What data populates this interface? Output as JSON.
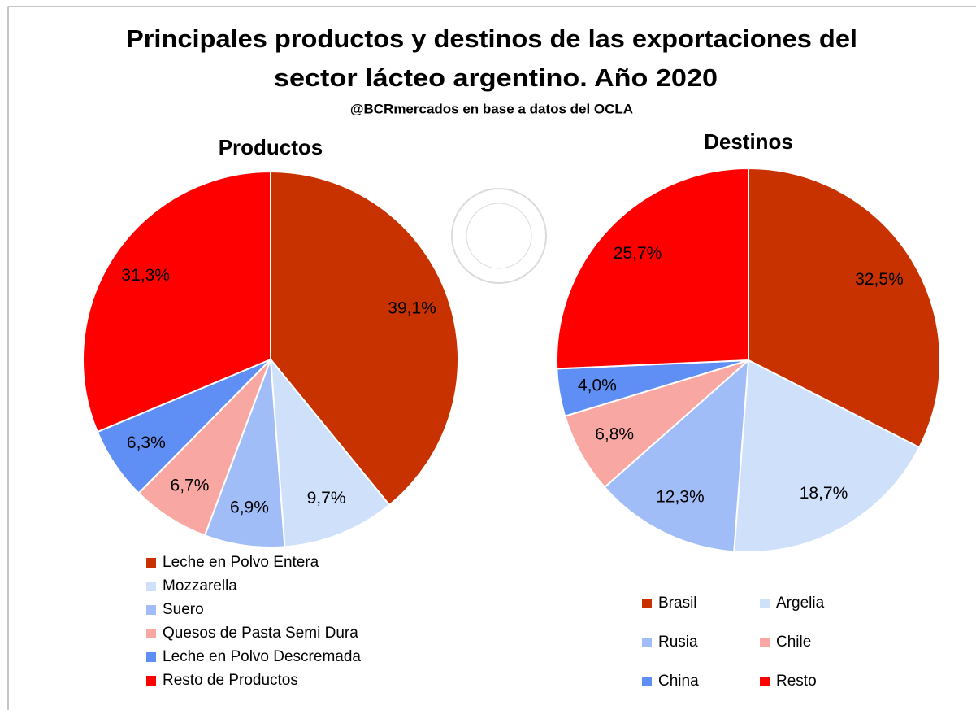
{
  "header": {
    "title_lines": [
      "Principales productos y destinos de las exportaciones del",
      "sector lácteo argentino. Año 2020"
    ],
    "subtitle": "@BCRmercados  en base a datos del OCLA"
  },
  "chart_data": [
    {
      "type": "pie",
      "title": "Productos",
      "categories": [
        "Leche en Polvo Entera",
        "Mozzarella",
        "Suero",
        "Quesos de Pasta Semi Dura",
        "Leche en Polvo Descremada",
        "Resto de Productos"
      ],
      "values": [
        39.1,
        9.7,
        6.9,
        6.7,
        6.3,
        31.3
      ],
      "value_labels": [
        "39,1%",
        "9,7%",
        "6,9%",
        "6,7%",
        "6,3%",
        "31,3%"
      ],
      "colors": [
        "#c83200",
        "#cfe0fb",
        "#a0bdf8",
        "#f9a7a2",
        "#5f8ff5",
        "#ff0000"
      ],
      "legend": "bottom"
    },
    {
      "type": "pie",
      "title": "Destinos",
      "categories": [
        "Brasil",
        "Argelia",
        "Rusia",
        "Chile",
        "China",
        "Resto"
      ],
      "values": [
        32.5,
        18.7,
        12.3,
        6.8,
        4.0,
        25.7
      ],
      "value_labels": [
        "32,5%",
        "18,7%",
        "12,3%",
        "6,8%",
        "4,0%",
        "25,7%"
      ],
      "colors": [
        "#c83200",
        "#cfe0fb",
        "#a0bdf8",
        "#f9a7a2",
        "#5f8ff5",
        "#ff0000"
      ],
      "legend": "bottom"
    }
  ]
}
